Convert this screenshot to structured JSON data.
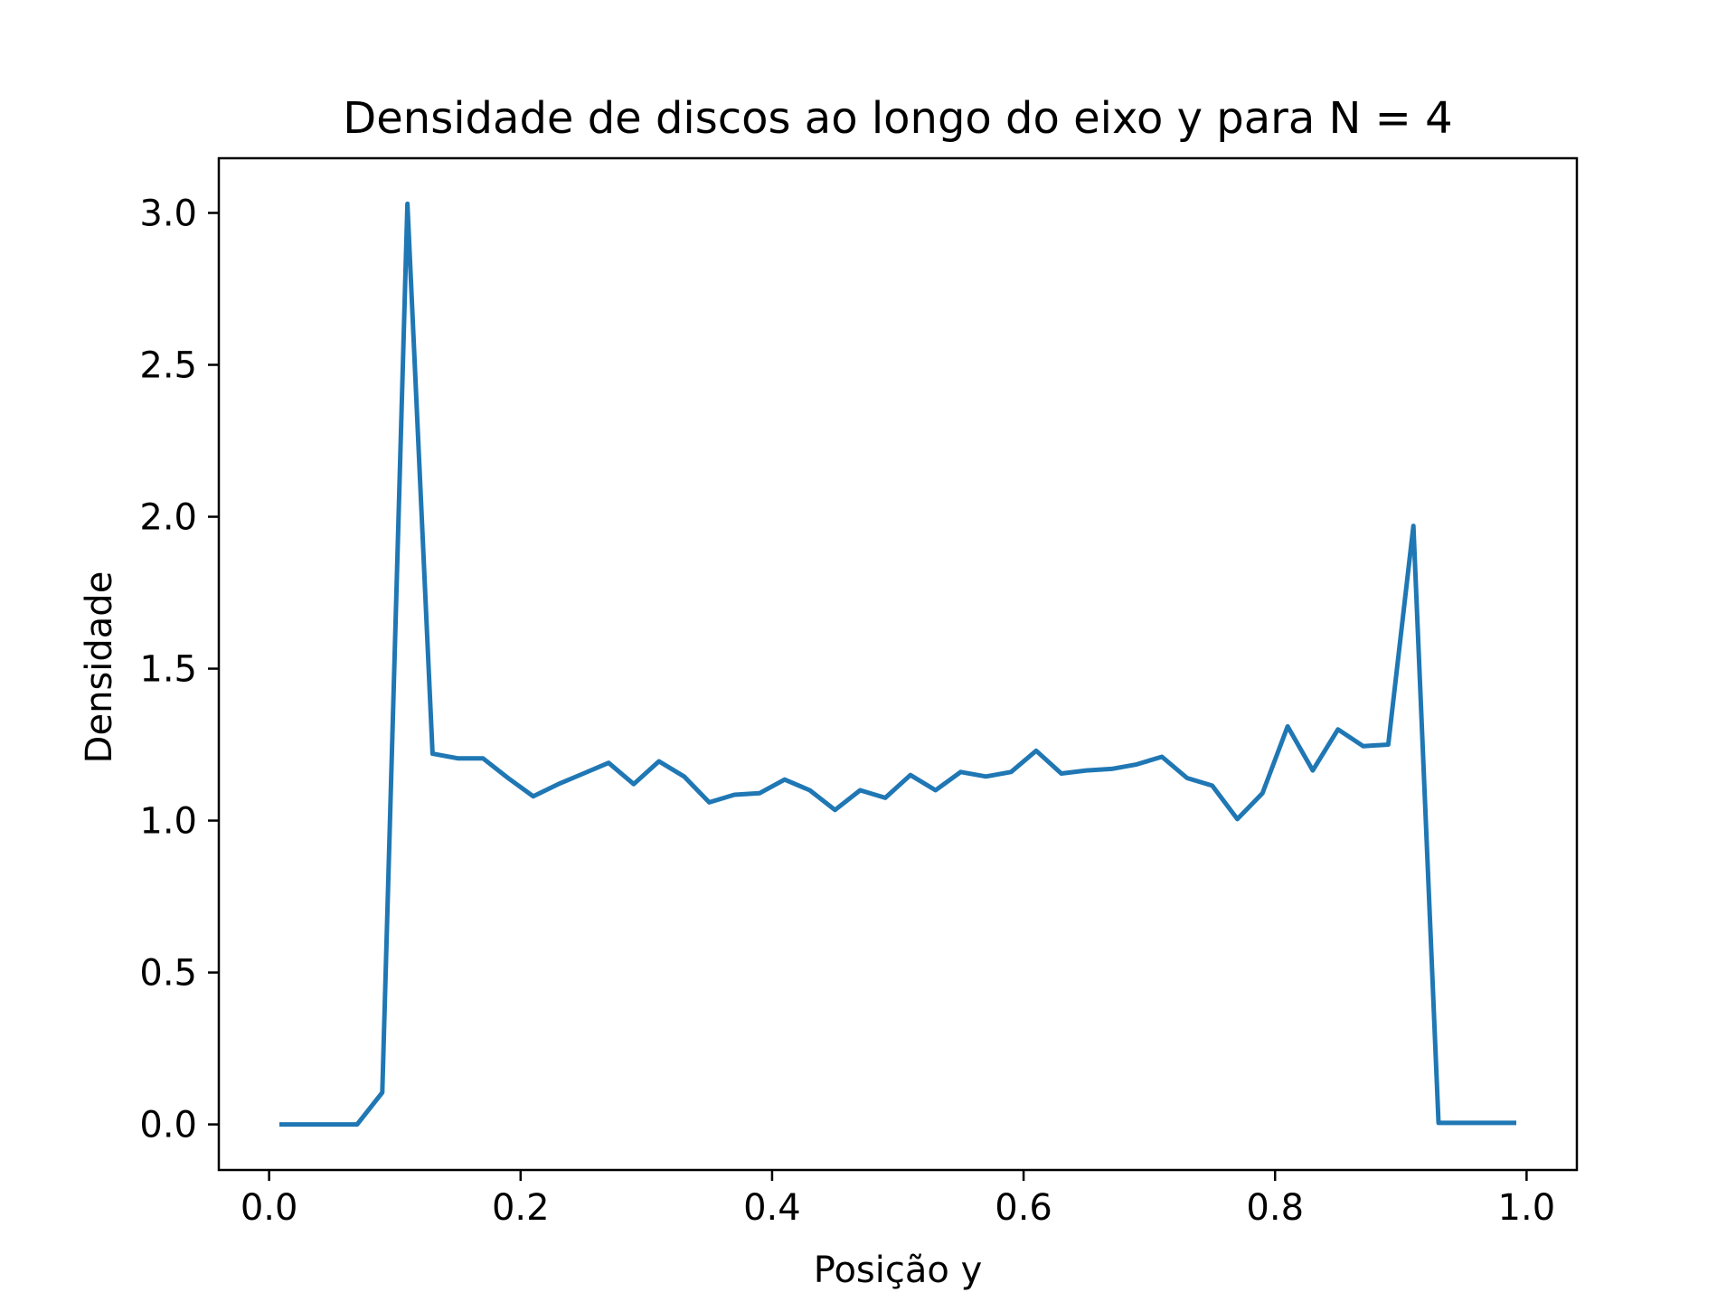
{
  "chart_data": {
    "type": "line",
    "title": "Densidade de discos ao longo do eixo y para N = 4",
    "xlabel": "Posição y",
    "ylabel": "Densidade",
    "xlim": [
      -0.04,
      1.04
    ],
    "ylim": [
      -0.15,
      3.18
    ],
    "xticks": [
      0.0,
      0.2,
      0.4,
      0.6,
      0.8,
      1.0
    ],
    "xtick_labels": [
      "0.0",
      "0.2",
      "0.4",
      "0.6",
      "0.8",
      "1.0"
    ],
    "yticks": [
      0.0,
      0.5,
      1.0,
      1.5,
      2.0,
      2.5,
      3.0
    ],
    "ytick_labels": [
      "0.0",
      "0.5",
      "1.0",
      "1.5",
      "2.0",
      "2.5",
      "3.0"
    ],
    "grid": false,
    "series": [
      {
        "color": "#1f77b4",
        "x": [
          0.01,
          0.03,
          0.05,
          0.07,
          0.09,
          0.11,
          0.13,
          0.15,
          0.17,
          0.19,
          0.21,
          0.23,
          0.25,
          0.27,
          0.29,
          0.31,
          0.33,
          0.35,
          0.37,
          0.39,
          0.41,
          0.43,
          0.45,
          0.47,
          0.49,
          0.51,
          0.53,
          0.55,
          0.57,
          0.59,
          0.61,
          0.63,
          0.65,
          0.67,
          0.69,
          0.71,
          0.73,
          0.75,
          0.77,
          0.79,
          0.81,
          0.83,
          0.85,
          0.87,
          0.89,
          0.91,
          0.93,
          0.95,
          0.97,
          0.99
        ],
        "y": [
          0.0,
          0.0,
          0.0,
          0.0,
          0.105,
          3.03,
          1.22,
          1.205,
          1.205,
          1.14,
          1.08,
          1.12,
          1.155,
          1.19,
          1.12,
          1.195,
          1.145,
          1.06,
          1.085,
          1.09,
          1.135,
          1.1,
          1.035,
          1.1,
          1.075,
          1.15,
          1.1,
          1.16,
          1.145,
          1.16,
          1.23,
          1.155,
          1.165,
          1.17,
          1.185,
          1.21,
          1.14,
          1.115,
          1.005,
          1.09,
          1.31,
          1.165,
          1.3,
          1.245,
          1.25,
          1.97,
          0.005,
          0.005,
          0.005,
          0.005
        ]
      }
    ]
  }
}
